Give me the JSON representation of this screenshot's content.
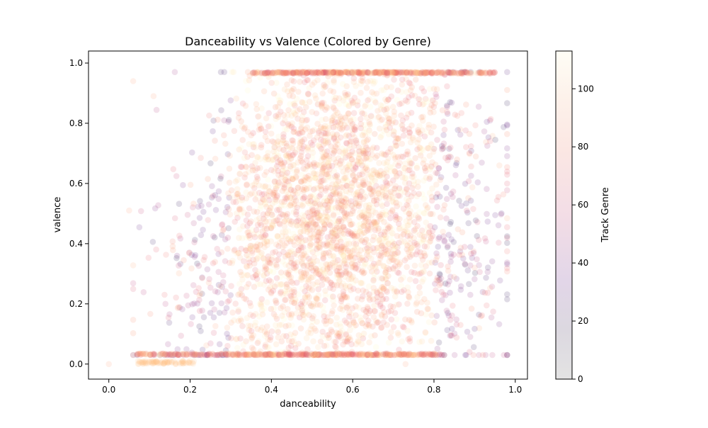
{
  "chart_data": {
    "type": "scatter",
    "title": "Danceability vs Valence (Colored by Genre)",
    "xlabel": "danceability",
    "ylabel": "valence",
    "xlim": [
      -0.05,
      1.03
    ],
    "ylim": [
      -0.05,
      1.04
    ],
    "xticks": [
      0.0,
      0.2,
      0.4,
      0.6,
      0.8,
      1.0
    ],
    "xtick_labels": [
      "0.0",
      "0.2",
      "0.4",
      "0.6",
      "0.8",
      "1.0"
    ],
    "yticks": [
      0.0,
      0.2,
      0.4,
      0.6,
      0.8,
      1.0
    ],
    "ytick_labels": [
      "0.0",
      "0.2",
      "0.4",
      "0.6",
      "0.8",
      "1.0"
    ],
    "grid": false,
    "marker_alpha": 0.15,
    "colormap": "magma",
    "colorbar": {
      "label": "Track Genre",
      "range": [
        0,
        113
      ],
      "ticks": [
        0,
        20,
        40,
        60,
        80,
        100
      ],
      "tick_labels": [
        "0",
        "20",
        "40",
        "60",
        "80",
        "100"
      ]
    },
    "x_range_dense": [
      0.06,
      0.98
    ],
    "y_floor_band": 0.03,
    "y_ceiling_band": 0.97,
    "notable_points": [
      {
        "x": 0.0,
        "y": 0.0
      },
      {
        "x": 0.05,
        "y": 0.51
      },
      {
        "x": 0.11,
        "y": 0.89
      },
      {
        "x": 0.06,
        "y": 0.94
      },
      {
        "x": 0.9,
        "y": 0.32
      },
      {
        "x": 0.73,
        "y": 0.0
      }
    ]
  }
}
